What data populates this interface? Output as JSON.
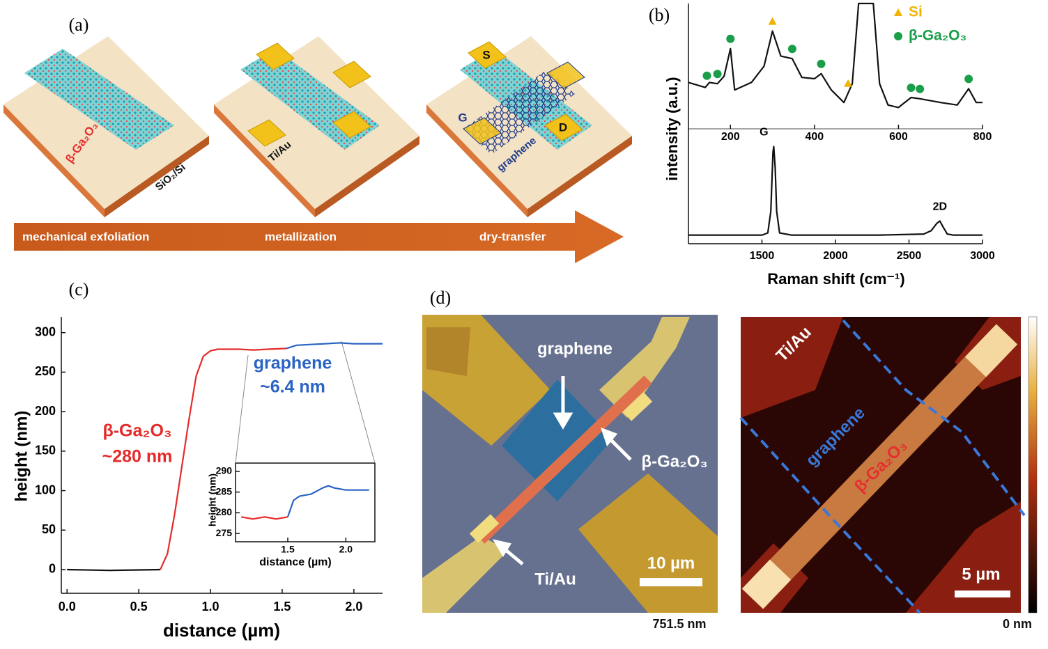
{
  "panel_labels": [
    "(a)",
    "(b)",
    "(c)",
    "(d)"
  ],
  "schematic": {
    "steps": [
      "mechanical exfoliation",
      "metallization",
      "dry-transfer"
    ],
    "labels": {
      "flake": "β-Ga₂O₃",
      "substrate": "SiO₂/Si",
      "metal": "Ti/Au",
      "source": "S",
      "gate": "G",
      "drain": "D",
      "graphene": "graphene"
    }
  },
  "chart_data": [
    {
      "type": "line",
      "ylabel": "intensity (a.u.)",
      "color": "#111111",
      "x": [
        100,
        140,
        150,
        169,
        185,
        200,
        210,
        250,
        280,
        300,
        320,
        347,
        370,
        400,
        416,
        440,
        470,
        490,
        505,
        540,
        555,
        575,
        600,
        630,
        651,
        700,
        740,
        767,
        785,
        800
      ],
      "values": [
        37,
        33,
        37,
        36,
        42,
        64,
        31,
        37,
        50,
        78,
        58,
        56,
        41,
        40,
        44,
        31,
        21,
        36,
        100,
        100,
        36,
        19,
        17,
        25,
        24,
        21,
        19,
        32,
        21,
        21
      ],
      "xlim": [
        100,
        800
      ],
      "xticks": [
        200,
        400,
        600,
        800
      ],
      "ylim": [
        0,
        100
      ],
      "markers": [
        {
          "name": "Si",
          "shape": "triangle",
          "color": "#f0b400",
          "x": [
            300,
            480
          ]
        },
        {
          "name": "β-Ga₂O₃",
          "shape": "circle",
          "color": "#1a9e4a",
          "x": [
            144,
            169,
            200,
            347,
            416,
            630,
            651,
            767
          ]
        }
      ]
    },
    {
      "type": "line",
      "xlabel": "Raman shift (cm⁻¹)",
      "color": "#111111",
      "x": [
        1000,
        1200,
        1400,
        1500,
        1540,
        1560,
        1575,
        1580,
        1590,
        1600,
        1620,
        1700,
        2000,
        2300,
        2600,
        2650,
        2690,
        2710,
        2730,
        2760,
        2800,
        3000
      ],
      "values": [
        8,
        8,
        8,
        8,
        10,
        30,
        85,
        90,
        70,
        30,
        10,
        8,
        8,
        8,
        9,
        12,
        19,
        21,
        16,
        9,
        8,
        8
      ],
      "xlim": [
        1000,
        3000
      ],
      "xticks": [
        1500,
        2000,
        2500,
        3000
      ],
      "ylim": [
        0,
        100
      ],
      "annotations": [
        {
          "text": "G",
          "x": 1580
        },
        {
          "text": "2D",
          "x": 2710
        }
      ]
    },
    {
      "type": "line",
      "xlabel": "distance (µm)",
      "ylabel": "height (nm)",
      "xlim": [
        -0.04,
        2.2
      ],
      "ylim": [
        -30,
        320
      ],
      "xticks": [
        {
          "value": 0,
          "label": "0.0"
        },
        0.5,
        {
          "value": 1,
          "label": "1.0"
        },
        1.5,
        {
          "value": 2,
          "label": "2.0"
        }
      ],
      "yticks": [
        0,
        50,
        100,
        150,
        200,
        250,
        300
      ],
      "series": [
        {
          "color": "#111111",
          "x": [
            0,
            0.3,
            0.65
          ],
          "values": [
            0,
            -1,
            0
          ]
        },
        {
          "color": "#e52a2a",
          "x": [
            0.65,
            0.7,
            0.75,
            0.8,
            0.85,
            0.9,
            0.95,
            1.0,
            1.05,
            1.1,
            1.2,
            1.3,
            1.4,
            1.53
          ],
          "values": [
            0,
            20,
            70,
            130,
            190,
            245,
            270,
            277,
            279,
            279,
            279,
            278,
            279,
            280
          ]
        },
        {
          "color": "#2a63c4",
          "x": [
            1.53,
            1.6,
            1.7,
            1.8,
            1.9,
            2.0,
            2.1,
            2.2
          ],
          "values": [
            280,
            284,
            285,
            286,
            287,
            286,
            286,
            286
          ]
        }
      ],
      "annotations": [
        {
          "text": "β-Ga₂O₃",
          "color": "#e52a2a"
        },
        {
          "text": "~280 nm",
          "color": "#e52a2a"
        },
        {
          "text": "graphene",
          "color": "#2a63c4"
        },
        {
          "text": "~6.4 nm",
          "color": "#2a63c4"
        }
      ]
    },
    {
      "type": "line",
      "xlabel": "distance (µm)",
      "ylabel": "height (nm)",
      "xlim": [
        1.05,
        2.25
      ],
      "ylim": [
        273,
        292
      ],
      "xticks": [
        1.5,
        {
          "value": 2,
          "label": "2.0"
        }
      ],
      "yticks": [
        275,
        280,
        285,
        290
      ],
      "series": [
        {
          "color": "#e52a2a",
          "x": [
            1.1,
            1.2,
            1.3,
            1.4,
            1.5
          ],
          "values": [
            279,
            278.5,
            279,
            278.5,
            279
          ]
        },
        {
          "color": "#2a63c4",
          "x": [
            1.5,
            1.55,
            1.6,
            1.7,
            1.8,
            1.85,
            1.9,
            2.0,
            2.1,
            2.2
          ],
          "values": [
            279,
            283,
            284,
            284.5,
            286,
            286.5,
            286,
            285.5,
            285.5,
            285.5
          ]
        }
      ]
    }
  ],
  "images": {
    "optical": {
      "labels": [
        "graphene",
        "β-Ga₂O₃",
        "Ti/Au"
      ],
      "scale_bar": "10 µm",
      "colorbar_max": "751.5 nm"
    },
    "afm": {
      "labels": [
        "Ti/Au",
        "graphene",
        "β-Ga₂O₃"
      ],
      "scale_bar": "5 µm",
      "colorbar_min": "0 nm"
    }
  }
}
